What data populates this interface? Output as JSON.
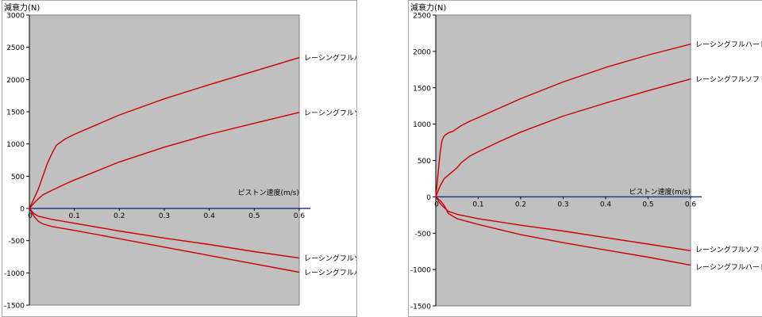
{
  "chart_data": [
    {
      "type": "line",
      "ylabel": "減衰力(N)",
      "xlabel": "ピストン速度(m/s)",
      "xlim": [
        0,
        0.6
      ],
      "ylim": [
        -1500,
        3000
      ],
      "yticks": [
        3000,
        2500,
        2000,
        1500,
        1000,
        500,
        0,
        -500,
        -1000,
        -1500
      ],
      "xticks": [
        0,
        0.1,
        0.2,
        0.3,
        0.4,
        0.5,
        0.6
      ],
      "xtick_labels": [
        "0",
        "0.1",
        "0.2",
        "0.3",
        "0.4",
        "0.5",
        "0.6"
      ],
      "plot_bg": "#c0c0c0",
      "series": [
        {
          "name": "レーシングフルハード",
          "color": "#cc0000",
          "x": [
            0,
            0.01,
            0.02,
            0.03,
            0.04,
            0.05,
            0.06,
            0.08,
            0.1,
            0.15,
            0.2,
            0.3,
            0.4,
            0.5,
            0.6
          ],
          "y": [
            0,
            150,
            300,
            500,
            700,
            850,
            980,
            1080,
            1150,
            1300,
            1450,
            1700,
            1920,
            2130,
            2340
          ]
        },
        {
          "name": "レーシングフルソフト",
          "color": "#cc0000",
          "x": [
            0,
            0.01,
            0.02,
            0.03,
            0.05,
            0.08,
            0.1,
            0.15,
            0.2,
            0.3,
            0.4,
            0.5,
            0.6
          ],
          "y": [
            0,
            80,
            150,
            210,
            280,
            380,
            440,
            580,
            720,
            950,
            1150,
            1320,
            1490
          ]
        },
        {
          "name": "レーシングフルソフト",
          "color": "#cc0000",
          "x": [
            0,
            0.01,
            0.02,
            0.05,
            0.1,
            0.2,
            0.3,
            0.4,
            0.5,
            0.6
          ],
          "y": [
            0,
            -80,
            -120,
            -170,
            -230,
            -350,
            -460,
            -560,
            -670,
            -770
          ]
        },
        {
          "name": "レーシングフルハード",
          "color": "#cc0000",
          "x": [
            0,
            0.01,
            0.02,
            0.03,
            0.05,
            0.1,
            0.2,
            0.3,
            0.4,
            0.5,
            0.6
          ],
          "y": [
            0,
            -120,
            -200,
            -240,
            -280,
            -340,
            -470,
            -600,
            -730,
            -860,
            -990
          ]
        }
      ]
    },
    {
      "type": "line",
      "ylabel": "減衰力(N)",
      "xlabel": "ピストン速度(m/s)",
      "xlim": [
        0,
        0.6
      ],
      "ylim": [
        -1500,
        2500
      ],
      "yticks": [
        2500,
        2000,
        1500,
        1000,
        500,
        0,
        -500,
        -1000,
        -1500
      ],
      "xticks": [
        0,
        0.1,
        0.2,
        0.3,
        0.4,
        0.5,
        0.6
      ],
      "xtick_labels": [
        "0",
        "0.1",
        "0.2",
        "0.3",
        "0.4",
        "0.5",
        "0.6"
      ],
      "plot_bg": "#c0c0c0",
      "series": [
        {
          "name": "レーシングフルハード",
          "color": "#cc0000",
          "x": [
            0,
            0.005,
            0.01,
            0.015,
            0.02,
            0.03,
            0.04,
            0.05,
            0.06,
            0.08,
            0.1,
            0.15,
            0.2,
            0.3,
            0.4,
            0.5,
            0.6
          ],
          "y": [
            0,
            300,
            600,
            780,
            840,
            880,
            900,
            940,
            980,
            1040,
            1090,
            1220,
            1350,
            1580,
            1780,
            1950,
            2100
          ]
        },
        {
          "name": "レーシングフルソフト",
          "color": "#cc0000",
          "x": [
            0,
            0.01,
            0.02,
            0.03,
            0.04,
            0.05,
            0.06,
            0.08,
            0.1,
            0.15,
            0.2,
            0.3,
            0.4,
            0.5,
            0.6
          ],
          "y": [
            0,
            150,
            250,
            300,
            350,
            400,
            470,
            560,
            620,
            760,
            890,
            1110,
            1290,
            1460,
            1620
          ]
        },
        {
          "name": "レーシングフルソフト",
          "color": "#cc0000",
          "x": [
            0,
            0.01,
            0.02,
            0.03,
            0.05,
            0.1,
            0.2,
            0.3,
            0.4,
            0.5,
            0.6
          ],
          "y": [
            0,
            -90,
            -150,
            -200,
            -240,
            -300,
            -390,
            -470,
            -560,
            -650,
            -740
          ]
        },
        {
          "name": "レーシングフルハード",
          "color": "#cc0000",
          "x": [
            0,
            0.01,
            0.02,
            0.03,
            0.05,
            0.1,
            0.2,
            0.3,
            0.4,
            0.5,
            0.6
          ],
          "y": [
            0,
            -50,
            -120,
            -230,
            -300,
            -380,
            -520,
            -630,
            -730,
            -830,
            -940
          ]
        }
      ]
    }
  ]
}
